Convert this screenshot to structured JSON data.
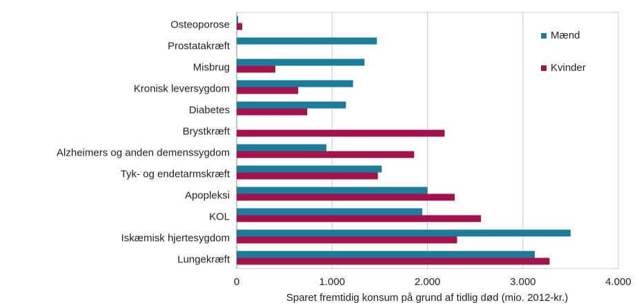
{
  "chart_data": {
    "type": "hbar",
    "x_label": "Sparet fremtidig konsum på grund af tidlig død (mio. 2012-kr.)",
    "categories": [
      "Osteoporose",
      "Prostatakræft",
      "Misbrug",
      "Kronisk leversygdom",
      "Diabetes",
      "Brystkræft",
      "Alzheimers og anden demenssygdom",
      "Tyk- og endetarmskræft",
      "Apopleksi",
      "KOL",
      "Iskæmisk hjertesygdom",
      "Lungekræft"
    ],
    "series": [
      {
        "name": "Mænd",
        "color": "#1b7d9b",
        "values": [
          15,
          1470,
          1340,
          1220,
          1145,
          0,
          940,
          1520,
          2000,
          1945,
          3500,
          3125
        ]
      },
      {
        "name": "Kvinder",
        "color": "#a3124b",
        "values": [
          58,
          0,
          405,
          645,
          740,
          2180,
          1860,
          1480,
          2285,
          2560,
          2310,
          3280
        ]
      }
    ],
    "xlim": [
      0,
      4000
    ],
    "xticks": [
      0,
      {
        "value": 1000,
        "label": "1.000"
      },
      {
        "value": 2000,
        "label": "2.000"
      },
      {
        "value": 3000,
        "label": "3.000"
      },
      {
        "value": 4000,
        "label": "4.000"
      }
    ],
    "grid": true,
    "legend": "top-right"
  }
}
